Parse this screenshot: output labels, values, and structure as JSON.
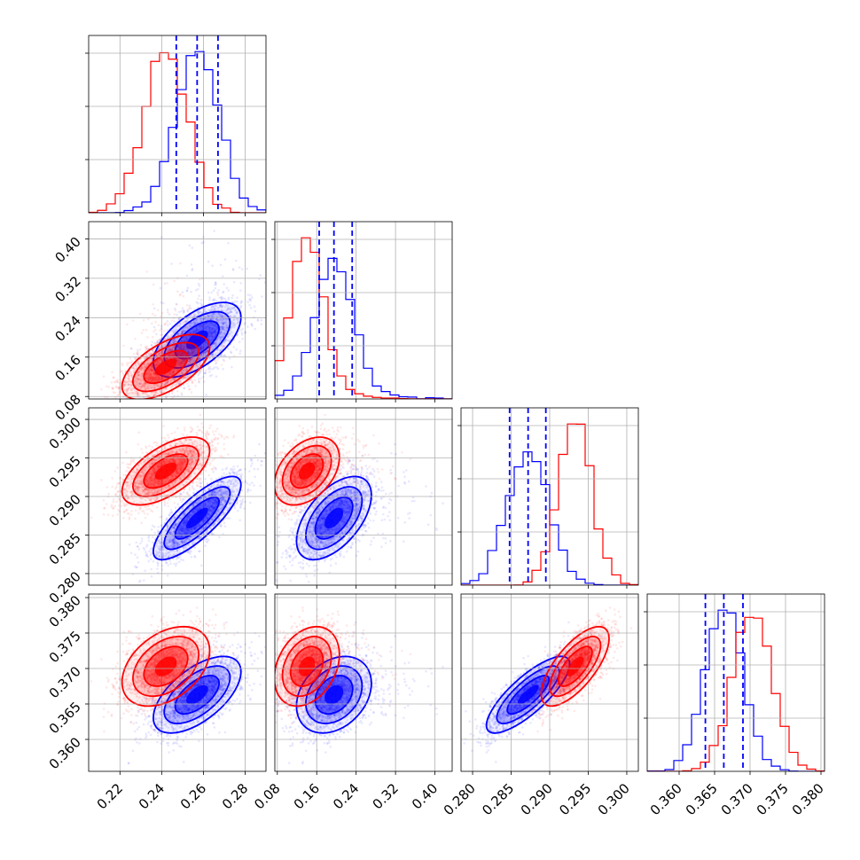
{
  "chart_data": {
    "type": "corner",
    "parameters": [
      {
        "range": [
          0.205,
          0.29
        ],
        "ticks": [
          0.22,
          0.24,
          0.26,
          0.28
        ],
        "tick_labels": [
          "0.22",
          "0.24",
          "0.26",
          "0.28"
        ]
      },
      {
        "range": [
          0.075,
          0.435
        ],
        "ticks": [
          0.08,
          0.16,
          0.24,
          0.32,
          0.4
        ],
        "tick_labels": [
          "0.08",
          "0.16",
          "0.24",
          "0.32",
          "0.40"
        ]
      },
      {
        "range": [
          0.2785,
          0.3015
        ],
        "ticks": [
          0.28,
          0.285,
          0.29,
          0.295,
          0.3
        ],
        "tick_labels": [
          "0.280",
          "0.285",
          "0.290",
          "0.295",
          "0.300"
        ]
      },
      {
        "range": [
          0.3555,
          0.3805
        ],
        "ticks": [
          0.36,
          0.365,
          0.37,
          0.375,
          0.38
        ],
        "tick_labels": [
          "0.360",
          "0.365",
          "0.370",
          "0.375",
          "0.380"
        ]
      }
    ],
    "grid": true,
    "series": [
      {
        "color": "#0000ff",
        "mean": [
          0.257,
          0.195,
          0.2872,
          0.3663
        ],
        "std": [
          0.0105,
          0.038,
          0.0027,
          0.0027
        ],
        "corr": [
          [
            1.0,
            0.6,
            0.8,
            0.6
          ],
          [
            0.6,
            1.0,
            0.55,
            0.3
          ],
          [
            0.8,
            0.55,
            1.0,
            0.8
          ],
          [
            0.6,
            0.3,
            0.8,
            1.0
          ]
        ],
        "quantile_lines": [
          [
            0.247,
            0.257,
            0.267
          ],
          [
            0.165,
            0.195,
            0.232
          ],
          [
            0.2848,
            0.2872,
            0.2895
          ],
          [
            0.3637,
            0.3663,
            0.369
          ]
        ]
      },
      {
        "color": "#ff0000",
        "mean": [
          0.242,
          0.14,
          0.2933,
          0.3703
        ],
        "std": [
          0.0105,
          0.033,
          0.0022,
          0.0028
        ],
        "corr": [
          [
            1.0,
            0.6,
            0.6,
            0.4
          ],
          [
            0.6,
            1.0,
            0.4,
            0.3
          ],
          [
            0.6,
            0.4,
            1.0,
            0.7
          ],
          [
            0.4,
            0.3,
            0.7,
            1.0
          ]
        ]
      }
    ]
  }
}
